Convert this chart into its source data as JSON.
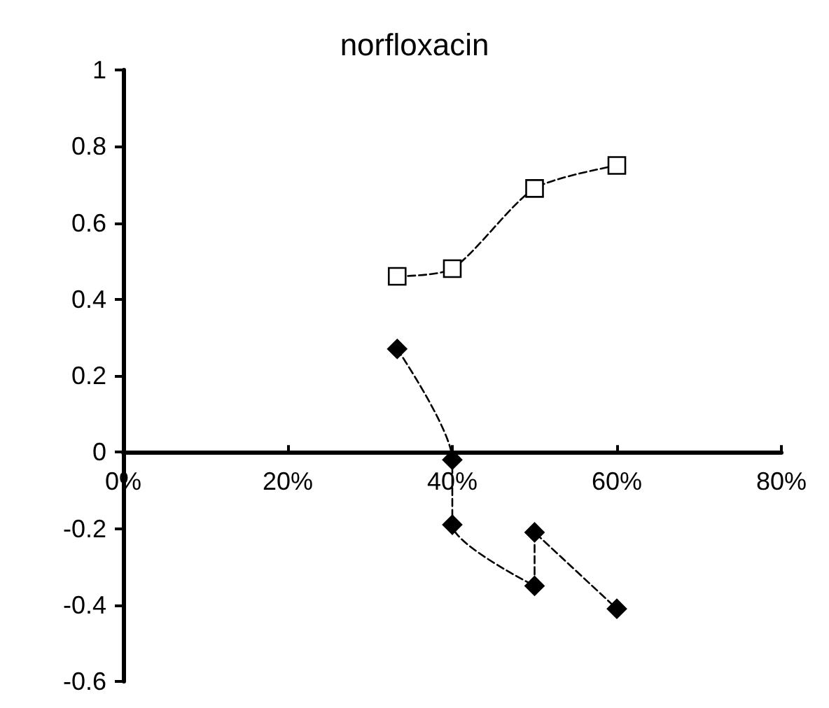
{
  "chart_data": {
    "type": "line",
    "title": "norfloxacin",
    "xlim": [
      0,
      80
    ],
    "xticks": [
      {
        "value": 0,
        "label": "0%"
      },
      {
        "value": 20,
        "label": "20%"
      },
      {
        "value": 40,
        "label": "40%"
      },
      {
        "value": 60,
        "label": "60%"
      },
      {
        "value": 80,
        "label": "80%"
      }
    ],
    "ylim": [
      -0.6,
      1
    ],
    "yticks": [
      -0.6,
      -0.4,
      -0.2,
      0,
      0.2,
      0.4,
      0.6,
      0.8,
      1
    ],
    "grid": false,
    "line_style": "dashed",
    "series": [
      {
        "color": "#ffffff",
        "marker": "square",
        "x": [
          33.3,
          40,
          50,
          60
        ],
        "values": [
          0.46,
          0.48,
          0.69,
          0.75
        ]
      },
      {
        "color": "#000000",
        "marker": "diamond",
        "x": [
          33.3,
          40,
          40,
          50,
          50,
          60
        ],
        "values": [
          0.27,
          -0.02,
          -0.19,
          -0.35,
          -0.21,
          -0.41
        ]
      }
    ]
  }
}
